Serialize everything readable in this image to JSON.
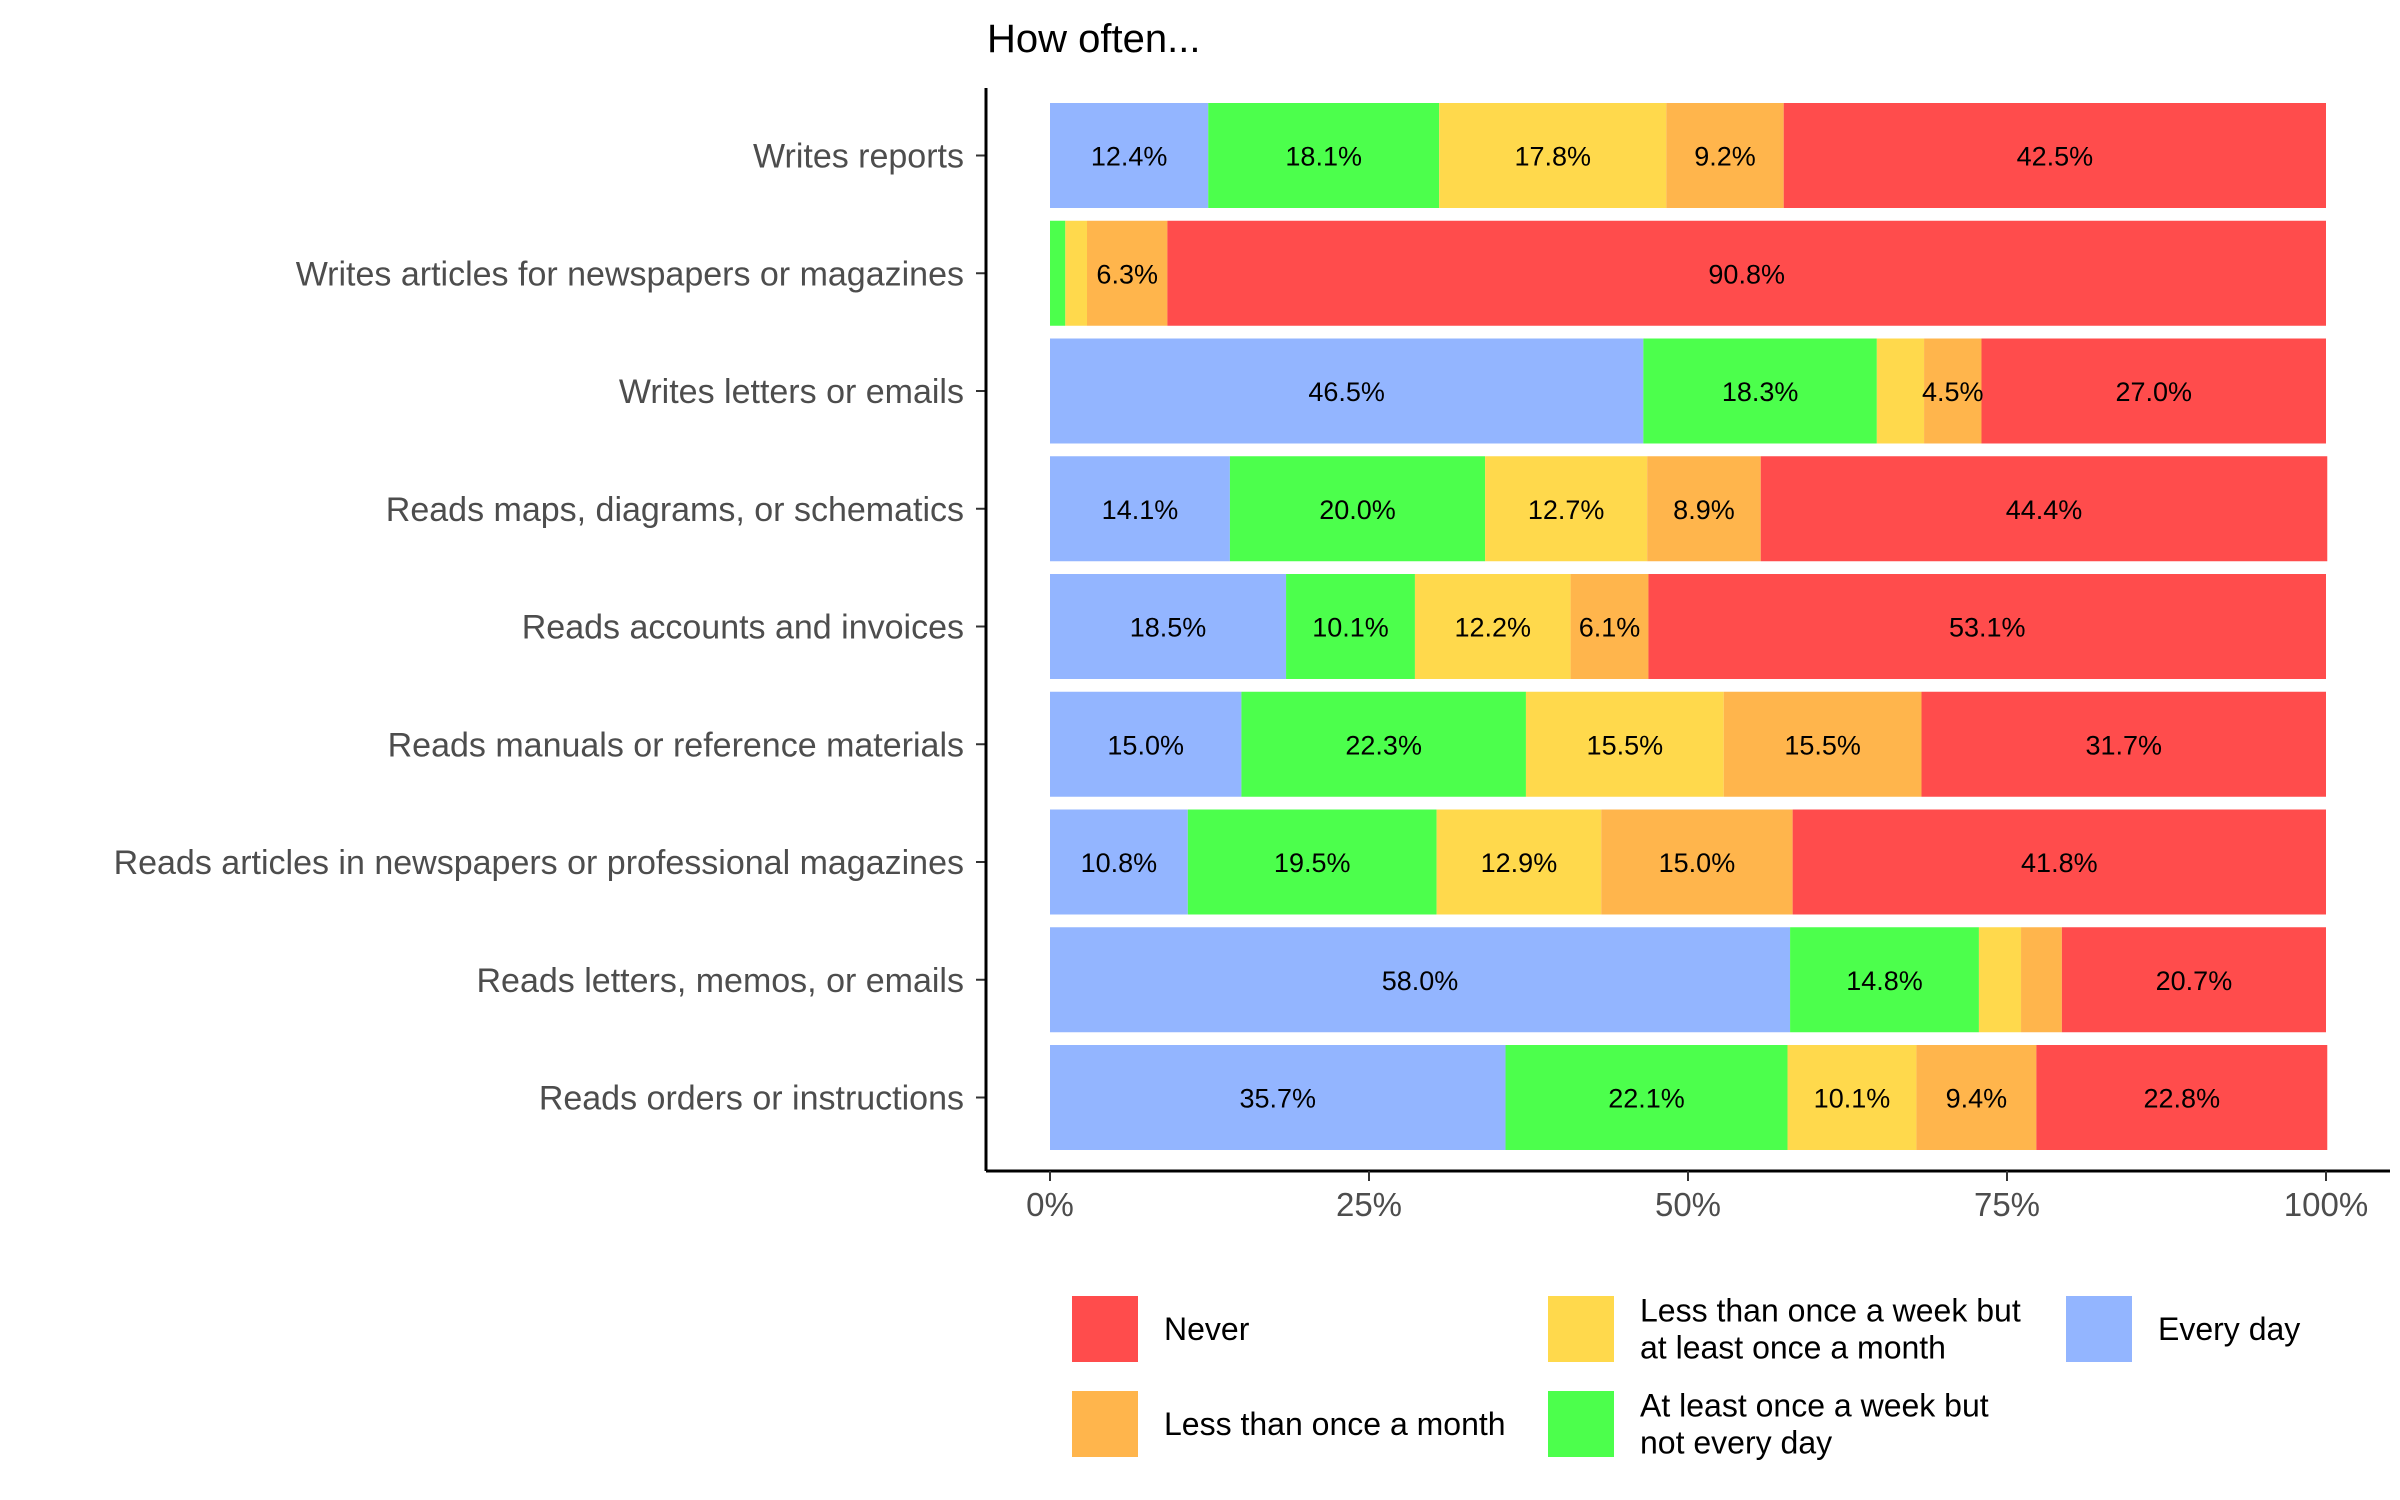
{
  "chart_data": {
    "type": "bar",
    "orientation": "horizontal",
    "stacked": true,
    "title": "How often...",
    "xlabel": "",
    "ylabel": "",
    "xlim": [
      0,
      100
    ],
    "x_ticks": [
      "0%",
      "25%",
      "50%",
      "75%",
      "100%"
    ],
    "x_tick_values": [
      0,
      25,
      50,
      75,
      100
    ],
    "categories": [
      "Writes reports",
      "Writes articles for newspapers or magazines",
      "Writes letters or emails",
      "Reads maps, diagrams, or schematics",
      "Reads accounts and invoices",
      "Reads manuals or reference materials",
      "Reads articles in newspapers or professional magazines",
      "Reads letters, memos, or emails",
      "Reads orders or instructions"
    ],
    "series": [
      {
        "name": "Every day",
        "color": "#93b5ff",
        "values": [
          12.4,
          0,
          46.5,
          14.1,
          18.5,
          15.0,
          10.8,
          58.0,
          35.7
        ],
        "labels": [
          "12.4%",
          "",
          "46.5%",
          "14.1%",
          "18.5%",
          "15.0%",
          "10.8%",
          "58.0%",
          "35.7%"
        ]
      },
      {
        "name": "At least once a week but not every day",
        "color": "#4cff4c",
        "values": [
          18.1,
          1.2,
          18.3,
          20.0,
          10.1,
          22.3,
          19.5,
          14.8,
          22.1
        ],
        "labels": [
          "18.1%",
          "",
          "18.3%",
          "20.0%",
          "10.1%",
          "22.3%",
          "19.5%",
          "14.8%",
          "22.1%"
        ]
      },
      {
        "name": "Less than once a week but at least once a month",
        "color": "#ffd94c",
        "values": [
          17.8,
          1.7,
          3.7,
          12.7,
          12.2,
          15.5,
          12.9,
          3.3,
          10.1
        ],
        "labels": [
          "17.8%",
          "",
          "",
          "12.7%",
          "12.2%",
          "15.5%",
          "12.9%",
          "",
          "10.1%"
        ]
      },
      {
        "name": "Less than once a month",
        "color": "#ffb54c",
        "values": [
          9.2,
          6.3,
          4.5,
          8.9,
          6.1,
          15.5,
          15.0,
          3.2,
          9.4
        ],
        "labels": [
          "9.2%",
          "6.3%",
          "4.5%",
          "8.9%",
          "6.1%",
          "15.5%",
          "15.0%",
          "",
          "9.4%"
        ]
      },
      {
        "name": "Never",
        "color": "#ff4c4c",
        "values": [
          42.5,
          90.8,
          27.0,
          44.4,
          53.1,
          31.7,
          41.8,
          20.7,
          22.8
        ],
        "labels": [
          "42.5%",
          "90.8%",
          "27.0%",
          "44.4%",
          "53.1%",
          "31.7%",
          "41.8%",
          "20.7%",
          "22.8%"
        ]
      }
    ],
    "legend": {
      "placement": "bottom",
      "entries": [
        {
          "lines": [
            "Never"
          ],
          "color": "#ff4c4c"
        },
        {
          "lines": [
            "Less than once a month"
          ],
          "color": "#ffb54c"
        },
        {
          "lines": [
            "Less than once a week but",
            "at least once a month"
          ],
          "color": "#ffd94c"
        },
        {
          "lines": [
            "At least once a week but",
            "not every day"
          ],
          "color": "#4cff4c"
        },
        {
          "lines": [
            "Every day"
          ],
          "color": "#93b5ff"
        }
      ]
    },
    "grid": false
  }
}
